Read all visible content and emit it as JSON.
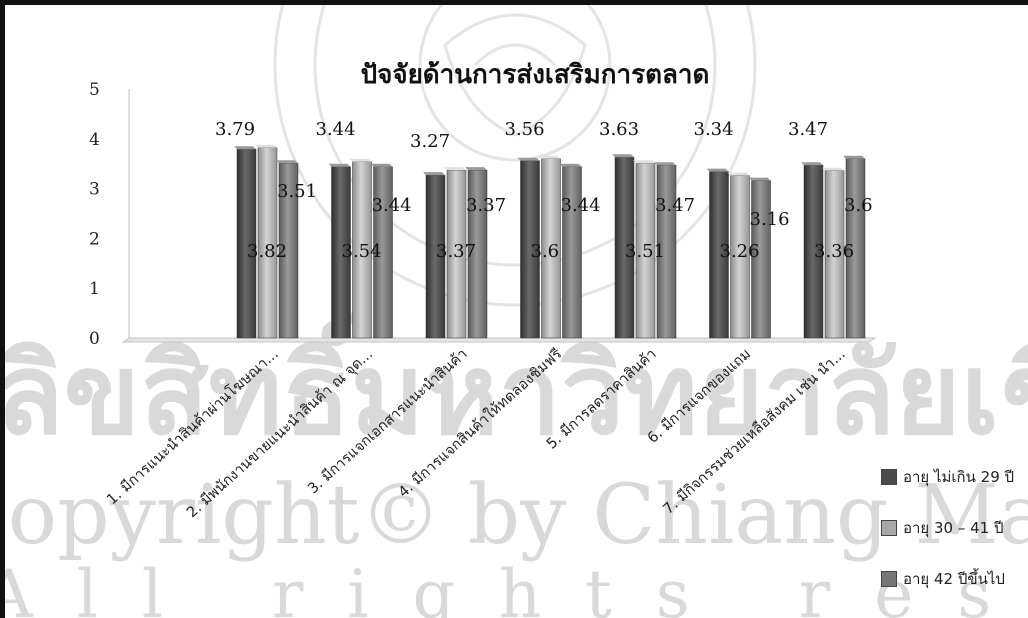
{
  "chart_data": {
    "type": "bar",
    "title": "ปัจจัยด้านการส่งเสริมการตลาด",
    "xlabel": "",
    "ylabel": "",
    "ylim": [
      0,
      5
    ],
    "yticks": [
      "0",
      "1",
      "2",
      "3",
      "4",
      "5"
    ],
    "grid": false,
    "legend_position": "right",
    "categories": [
      "1. มีการแนะนำสินค้าผ่านโฆษณา...",
      "2. มีพนักงานขายแนะนำสินค้า ณ จุด...",
      "3. มีการแจกเอกสารแนะนำสินค้า",
      "4. มีการแจกสินค้าให้ทดลองชิมฟรี",
      "5. มีการลดราคาสินค้า",
      "6. มีการแจกของแถม",
      "7. มีกิจกรรมช่วยเหลือสังคม เช่น นำ..."
    ],
    "series": [
      {
        "name": "อายุ ไม่เกิน 29 ปี",
        "values": [
          3.79,
          3.44,
          3.27,
          3.56,
          3.63,
          3.34,
          3.47
        ],
        "labels": [
          "3.79",
          "3.44",
          "3.27",
          "3.56",
          "3.63",
          "3.34",
          "3.47"
        ],
        "color": "#4a4a4a"
      },
      {
        "name": "อายุ 30 – 41 ปี",
        "values": [
          3.82,
          3.54,
          3.37,
          3.6,
          3.51,
          3.26,
          3.36
        ],
        "labels": [
          "3.82",
          "3.54",
          "3.37",
          "3.6",
          "3.51",
          "3.26",
          "3.36"
        ],
        "color": "#a8a8a8"
      },
      {
        "name": "อายุ 42 ปีขึ้นไป",
        "values": [
          3.51,
          3.44,
          3.37,
          3.44,
          3.47,
          3.16,
          3.6
        ],
        "labels": [
          "3.51",
          "3.44",
          "3.37",
          "3.44",
          "3.47",
          "3.16",
          "3.6"
        ],
        "color": "#777777"
      }
    ]
  },
  "watermark": {
    "line1": "ลิขสิทธิ์มหาวิทยาลัยเชียงใหม่",
    "line2": "Copyright© by Chiang Mai University",
    "line3": "All rights reserved",
    "seal_text": "CHIANG MAI UNIVERSITY"
  }
}
